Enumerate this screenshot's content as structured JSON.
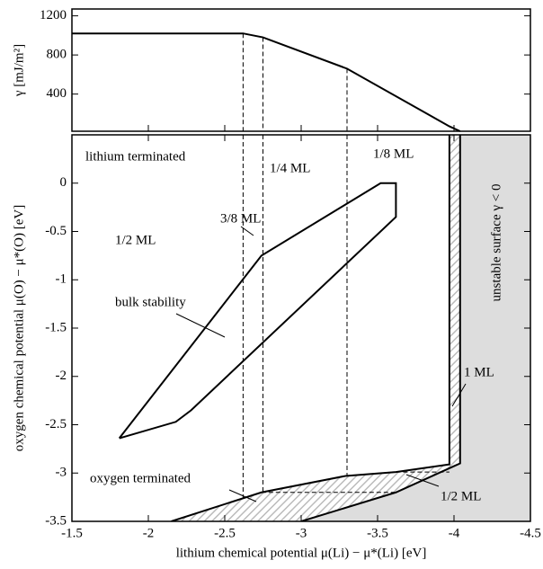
{
  "chart_data": [
    {
      "type": "line",
      "y_label": "γ [mJ/m²]",
      "x": [
        -1.5,
        -2.62,
        -2.75,
        -3.3,
        -3.97,
        -4.04
      ],
      "values": [
        1020,
        1020,
        980,
        660,
        70,
        20
      ],
      "color": "#000000",
      "drop_lines": {
        "x": [
          -2.62,
          -2.75,
          -3.3
        ],
        "values": [
          1020,
          980,
          660
        ]
      },
      "xlim": [
        -1.5,
        -4.5
      ],
      "xticks": [
        -1.5,
        -2,
        -2.5,
        -3,
        -3.5,
        -4,
        -4.5
      ],
      "ylim": [
        20,
        1270
      ],
      "yticks": [
        400,
        800,
        1200
      ]
    },
    {
      "type": "phase",
      "x_label": "lithium chemical potential μ(Li) − μ*(Li) [eV]",
      "y_label": "oxygen chemical potential μ(O) − μ*(O) [eV]",
      "xlim": [
        -1.5,
        -4.5
      ],
      "xticks": [
        -1.5,
        -2,
        -2.5,
        -3,
        -3.5,
        -4,
        -4.5
      ],
      "ylim": [
        -3.5,
        0.5
      ],
      "yticks": [
        -3.5,
        -3,
        -2.5,
        -2,
        -1.5,
        -1,
        -0.5,
        0
      ],
      "regions": [
        {
          "fill": "#dddddd",
          "x": [
            -4.04,
            -4.5,
            -4.5,
            -3.0,
            -3.62,
            -4.04
          ],
          "values": [
            0.5,
            0.5,
            -3.5,
            -3.5,
            -3.2,
            -2.9
          ]
        },
        {
          "fill": "hatch",
          "x": [
            -3.97,
            -4.04,
            -4.04,
            -3.97
          ],
          "values": [
            0.5,
            0.5,
            -2.9,
            -2.91
          ]
        },
        {
          "fill": "hatch",
          "x": [
            -2.15,
            -2.74,
            -3.29,
            -3.62,
            -3.97,
            -4.04,
            -3.62,
            -3.0
          ],
          "values": [
            -3.5,
            -3.2,
            -3.03,
            -2.99,
            -2.91,
            -2.9,
            -3.2,
            -3.5
          ]
        }
      ],
      "lines": [
        {
          "style": "solid",
          "x": [
            -1.81,
            -2.74,
            -3.52,
            -3.62,
            -3.62,
            -2.28,
            -2.18,
            -1.81
          ],
          "values": [
            -2.64,
            -0.75,
            0,
            0,
            -0.35,
            -2.35,
            -2.47,
            -2.64
          ]
        },
        {
          "style": "solid",
          "x": [
            -2.15,
            -2.74,
            -3.29,
            -3.62,
            -3.97,
            -3.97
          ],
          "values": [
            -3.5,
            -3.2,
            -3.03,
            -2.99,
            -2.91,
            0.5
          ]
        },
        {
          "style": "solid",
          "x": [
            -3.0,
            -3.62,
            -4.04,
            -4.04
          ],
          "values": [
            -3.5,
            -3.2,
            -2.9,
            0.5
          ]
        },
        {
          "style": "dashed",
          "x": [
            -2.62,
            -2.62
          ],
          "values": [
            0.5,
            -3.27
          ]
        },
        {
          "style": "dashed",
          "x": [
            -2.75,
            -2.75
          ],
          "values": [
            0.5,
            -3.2
          ]
        },
        {
          "style": "dashed",
          "x": [
            -3.3,
            -3.3
          ],
          "values": [
            0.5,
            -3.03
          ]
        },
        {
          "style": "dashed",
          "x": [
            -2.74,
            -3.62
          ],
          "values": [
            -3.2,
            -3.2
          ]
        },
        {
          "style": "dashed",
          "x": [
            -3.62,
            -3.97
          ],
          "values": [
            -2.99,
            -2.99
          ]
        }
      ],
      "annotations": [
        "lithium terminated",
        "1/4 ML",
        "1/8 ML",
        "3/8 ML",
        "1/2 ML",
        "bulk stability",
        "unstable surface  γ < 0",
        "1 ML",
        "oxygen terminated",
        "1/2 ML"
      ]
    }
  ]
}
